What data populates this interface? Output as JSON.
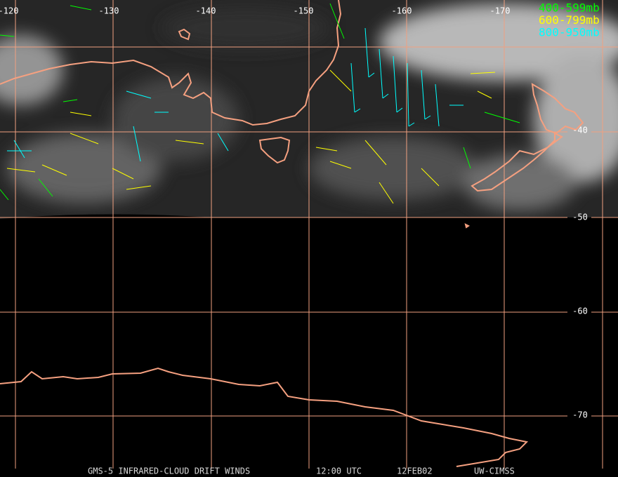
{
  "map": {
    "longitude_labels": [
      "-120",
      "-130",
      "-140",
      "-150",
      "-160",
      "-170"
    ],
    "latitude_labels": [
      "-40",
      "-50",
      "-60",
      "-70"
    ],
    "legend": [
      {
        "label": "400-599mb",
        "color": "#00ff00"
      },
      {
        "label": "600-799mb",
        "color": "#ffff00"
      },
      {
        "label": "800-950mb",
        "color": "#00ffff"
      }
    ],
    "footer": [
      "GMS-5 INFRARED-CLOUD DRIFT WINDS",
      "12:00 UTC",
      "12FEB02",
      "UW-CIMSS"
    ]
  }
}
